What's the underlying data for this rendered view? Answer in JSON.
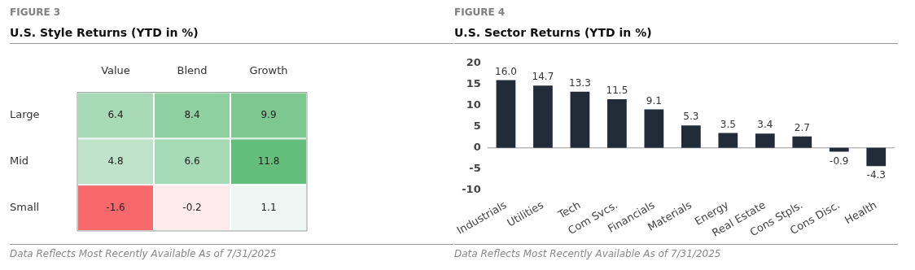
{
  "chart_data": [
    {
      "type": "heatmap",
      "title": "FIGURE 3",
      "subtitle": "U.S. Style Returns (YTD in %)",
      "categories": [
        "Value",
        "Blend",
        "Growth"
      ],
      "y_categories": [
        "Large",
        "Mid",
        "Small"
      ],
      "cells": [
        [
          6.4,
          8.4,
          9.9
        ],
        [
          4.8,
          6.6,
          11.8
        ],
        [
          -1.6,
          -0.2,
          1.1
        ]
      ],
      "cell_labels": [
        [
          "6.4",
          "8.4",
          "9.9"
        ],
        [
          "4.8",
          "6.6",
          "11.8"
        ],
        [
          "-1.6",
          "-0.2",
          "1.1"
        ]
      ],
      "annotations": [
        "Data Reflects Most Recently Available As of 7/31/2025"
      ]
    },
    {
      "type": "bar",
      "title": "FIGURE 4",
      "subtitle": "U.S. Sector Returns (YTD in %)",
      "categories": [
        "Industrials",
        "Utilities",
        "Tech",
        "Com Svcs.",
        "Financials",
        "Materials",
        "Energy",
        "Real Estate",
        "Cons Stpls.",
        "Cons Disc.",
        "Health"
      ],
      "values": [
        16.0,
        14.7,
        13.3,
        11.5,
        9.1,
        5.3,
        3.5,
        3.4,
        2.7,
        -0.9,
        -4.3
      ],
      "color": "#222b38",
      "ylim": [
        -10,
        20
      ],
      "yticks": [
        -10,
        -5,
        0,
        5,
        10,
        15,
        20
      ],
      "value_labels": [
        "16.0",
        "14.7",
        "13.3",
        "11.5",
        "9.1",
        "5.3",
        "3.5",
        "3.4",
        "2.7",
        "-0.9",
        "-4.3"
      ],
      "ref_lines": [
        {
          "axis": "y",
          "value": 0,
          "color": "#999999"
        }
      ],
      "annotations": [
        "Data Reflects Most Recently Available As of 7/31/2025"
      ]
    }
  ]
}
